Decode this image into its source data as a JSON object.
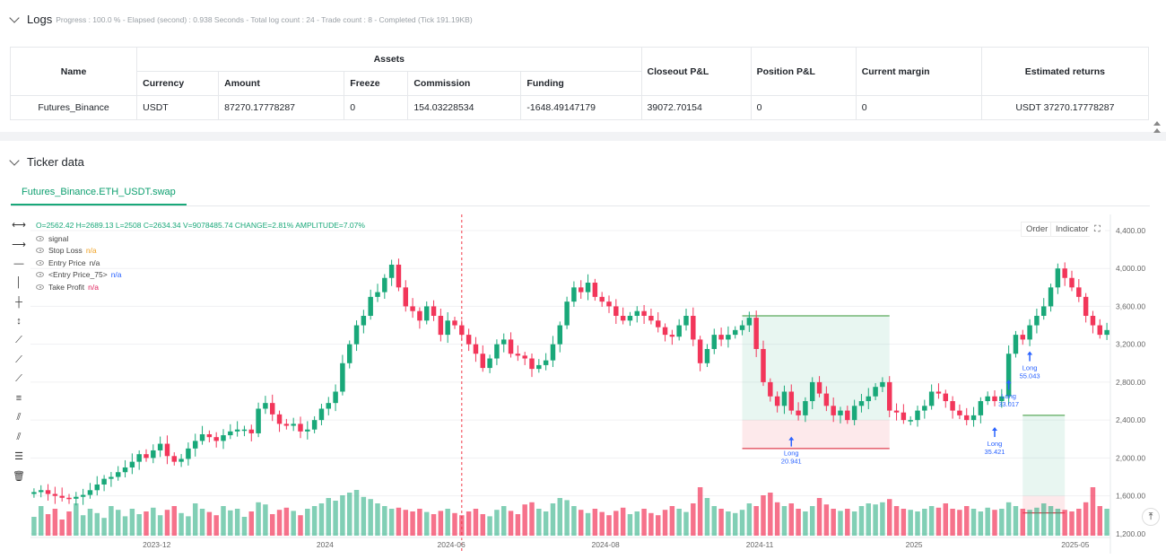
{
  "logs": {
    "title": "Logs",
    "meta": "Progress : 100.0 % - Elapsed (second) : 0.938  Seconds - Total log count : 24 - Trade count : 8 - Completed (Tick 191.19KB)",
    "table": {
      "col_name": "Name",
      "col_assets": "Assets",
      "col_closeout": "Closeout P&L",
      "col_position": "Position P&L",
      "col_margin": "Current margin",
      "col_returns": "Estimated returns",
      "sub_currency": "Currency",
      "sub_amount": "Amount",
      "sub_freeze": "Freeze",
      "sub_commission": "Commission",
      "sub_funding": "Funding",
      "row": {
        "name": "Futures_Binance",
        "currency": "USDT",
        "amount": "87270.17778287",
        "freeze": "0",
        "commission": "154.03228534",
        "funding": "-1648.49147179",
        "closeout": "39072.70154",
        "position": "0",
        "margin": "0",
        "returns": "USDT 37270.17778287"
      }
    }
  },
  "ticker": {
    "title": "Ticker data",
    "tab": "Futures_Binance.ETH_USDT.swap",
    "ohlc": "O=2562.42 H=2689.13 L=2508 C=2634.34 V=9078485.74 CHANGE=2.81% AMPLITUDE=7.07%",
    "buttons": {
      "order": "Order",
      "indicator": "Indicator",
      "fullscreen": "⛶"
    },
    "legend": [
      {
        "label": "signal",
        "value": "",
        "color": "#444444"
      },
      {
        "label": "Stop Loss",
        "value": "n/a",
        "color": "#f0a020"
      },
      {
        "label": "Entry Price",
        "value": "n/a",
        "color": "#444444"
      },
      {
        "label": "<Entry Price_75>",
        "value": "n/a",
        "color": "#2962ff"
      },
      {
        "label": "Take Profit",
        "value": "n/a",
        "color": "#e0245e"
      }
    ],
    "tools": [
      "↔-icon",
      "ray-icon",
      "minus-icon",
      "vline-icon",
      "cross-v-icon",
      "arrow-v-icon",
      "trend-icon",
      "trend2-icon",
      "trend3-icon",
      "fib-icon",
      "parallel-icon",
      "pitchfork-icon",
      "ruler-icon",
      "trash-icon"
    ]
  },
  "chart_data": {
    "type": "candlestick",
    "y_ticks": [
      "4,400.00",
      "4,000.00",
      "3,600.00",
      "3,200.00",
      "2,800.00",
      "2,400.00",
      "2,000.00",
      "1,600.00",
      "1,200.00"
    ],
    "y_tick_values": [
      4400,
      4000,
      3600,
      3200,
      2800,
      2400,
      2000,
      1600,
      1200
    ],
    "ylim": [
      1180,
      4570
    ],
    "x_ticks": [
      "2023-12",
      "2024",
      "2024-06",
      "2024-08",
      "2024-11",
      "2025",
      "2025-05"
    ],
    "x_tick_positions": [
      18,
      42,
      60,
      82,
      104,
      126,
      149
    ],
    "n_bars": 154,
    "closes": [
      1640,
      1660,
      1620,
      1600,
      1580,
      1570,
      1590,
      1610,
      1660,
      1720,
      1780,
      1800,
      1850,
      1900,
      1960,
      2040,
      2000,
      2080,
      2150,
      2020,
      1960,
      1990,
      2100,
      2180,
      2250,
      2220,
      2180,
      2240,
      2280,
      2300,
      2300,
      2260,
      2520,
      2580,
      2460,
      2360,
      2340,
      2360,
      2280,
      2300,
      2400,
      2520,
      2580,
      2700,
      3000,
      3200,
      3400,
      3500,
      3700,
      3750,
      3900,
      4040,
      3800,
      3600,
      3550,
      3450,
      3600,
      3500,
      3300,
      3450,
      3400,
      3300,
      3200,
      3100,
      2950,
      3050,
      3200,
      3250,
      3100,
      3080,
      3050,
      2940,
      2980,
      3030,
      3200,
      3400,
      3650,
      3800,
      3750,
      3850,
      3700,
      3650,
      3600,
      3500,
      3450,
      3500,
      3550,
      3500,
      3450,
      3380,
      3300,
      3280,
      3400,
      3500,
      3250,
      3000,
      3150,
      3300,
      3250,
      3300,
      3350,
      3400,
      3480,
      3150,
      2800,
      2650,
      2550,
      2700,
      2500,
      2450,
      2600,
      2800,
      2680,
      2550,
      2450,
      2500,
      2400,
      2550,
      2600,
      2650,
      2750,
      2800,
      2500,
      2480,
      2400,
      2400,
      2500,
      2550,
      2700,
      2680,
      2600,
      2500,
      2450,
      2400,
      2450,
      2600,
      2650,
      2600,
      2650,
      3100,
      3300,
      3250,
      3400,
      3500,
      3600,
      3800,
      4000,
      3900,
      3800,
      3700,
      3500,
      3400,
      3300,
      3350
    ],
    "volumes": [
      0.35,
      0.55,
      0.4,
      0.5,
      0.3,
      0.45,
      0.6,
      0.38,
      0.5,
      0.42,
      0.33,
      0.55,
      0.48,
      0.36,
      0.5,
      0.4,
      0.45,
      0.52,
      0.38,
      0.48,
      0.55,
      0.42,
      0.36,
      0.6,
      0.5,
      0.44,
      0.38,
      0.55,
      0.47,
      0.5,
      0.35,
      0.45,
      0.62,
      0.58,
      0.4,
      0.48,
      0.52,
      0.46,
      0.38,
      0.5,
      0.55,
      0.6,
      0.7,
      0.65,
      0.75,
      0.8,
      0.85,
      0.72,
      0.68,
      0.6,
      0.55,
      0.5,
      0.52,
      0.48,
      0.45,
      0.5,
      0.44,
      0.4,
      0.46,
      0.5,
      0.42,
      0.38,
      0.45,
      0.5,
      0.4,
      0.36,
      0.48,
      0.55,
      0.46,
      0.4,
      0.58,
      0.62,
      0.5,
      0.45,
      0.6,
      0.7,
      0.66,
      0.55,
      0.48,
      0.42,
      0.5,
      0.44,
      0.38,
      0.46,
      0.52,
      0.4,
      0.45,
      0.5,
      0.42,
      0.38,
      0.48,
      0.55,
      0.5,
      0.44,
      0.6,
      0.9,
      0.7,
      0.55,
      0.5,
      0.45,
      0.42,
      0.48,
      0.6,
      0.55,
      0.75,
      0.8,
      0.62,
      0.55,
      0.6,
      0.5,
      0.45,
      0.55,
      0.7,
      0.58,
      0.5,
      0.46,
      0.5,
      0.45,
      0.55,
      0.6,
      0.58,
      0.62,
      0.68,
      0.55,
      0.5,
      0.48,
      0.45,
      0.5,
      0.55,
      0.52,
      0.6,
      0.5,
      0.48,
      0.55,
      0.5,
      0.45,
      0.52,
      0.48,
      0.5,
      0.62,
      0.55,
      0.5,
      0.48,
      0.52,
      0.6,
      0.55,
      0.5,
      0.48,
      0.45,
      0.5,
      0.62,
      0.9,
      0.55,
      0.5
    ],
    "signals": [
      {
        "label": "Long",
        "value": "20.941",
        "bar": 108
      },
      {
        "label": "Long",
        "value": "35.421",
        "bar": 137
      },
      {
        "label": "Long",
        "value": "33.017",
        "bar": 139
      },
      {
        "label": "Long",
        "value": "55.043",
        "bar": 142
      }
    ],
    "cursor_bar": 61
  }
}
